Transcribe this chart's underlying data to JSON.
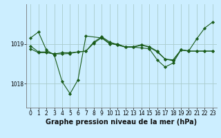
{
  "background_color": "#cceeff",
  "grid_color": "#aacccc",
  "line_color": "#1a5c1a",
  "marker_color": "#1a5c1a",
  "xlabel": "Graphe pression niveau de la mer (hPa)",
  "yticks": [
    1018,
    1019
  ],
  "ylim": [
    1017.4,
    1020.0
  ],
  "xlim": [
    -0.5,
    23.5
  ],
  "xticks": [
    0,
    1,
    2,
    3,
    4,
    5,
    6,
    7,
    8,
    9,
    10,
    11,
    12,
    13,
    14,
    15,
    16,
    17,
    18,
    19,
    20,
    21,
    22,
    23
  ],
  "series1_x": [
    0,
    1,
    2,
    3,
    3,
    4,
    5,
    6,
    7,
    9,
    10,
    11,
    12,
    13,
    14,
    15,
    16,
    17,
    18,
    19,
    20,
    21,
    22,
    23
  ],
  "series1_y": [
    1019.15,
    1019.3,
    1018.85,
    1018.72,
    1018.72,
    1018.05,
    1017.75,
    1018.1,
    1019.2,
    1019.15,
    1019.0,
    1019.0,
    1018.92,
    1018.92,
    1018.9,
    1018.88,
    1018.6,
    1018.42,
    1018.52,
    1018.85,
    1018.82,
    1018.82,
    1018.82,
    1018.82
  ],
  "series2_x": [
    0,
    1,
    2,
    3,
    4,
    5,
    6,
    7,
    8,
    9,
    10,
    11,
    12,
    13,
    14,
    15,
    16,
    17,
    18,
    19,
    20,
    21,
    22,
    23
  ],
  "series2_y": [
    1018.88,
    1018.78,
    1018.78,
    1018.75,
    1018.75,
    1018.76,
    1018.8,
    1018.82,
    1019.05,
    1019.18,
    1019.05,
    1018.98,
    1018.93,
    1018.93,
    1018.98,
    1018.93,
    1018.82,
    1018.62,
    1018.58,
    1018.85,
    1018.83,
    1019.13,
    1019.4,
    1019.55
  ],
  "series3_x": [
    0,
    1,
    2,
    3,
    4,
    5,
    6,
    7,
    8,
    9,
    10,
    11,
    12,
    13,
    14,
    15,
    16,
    17,
    18,
    19,
    20,
    21,
    22,
    23
  ],
  "series3_y": [
    1018.95,
    1018.8,
    1018.8,
    1018.75,
    1018.78,
    1018.78,
    1018.8,
    1018.82,
    1019.02,
    1019.16,
    1019.02,
    1018.97,
    1018.92,
    1018.92,
    1018.97,
    1018.92,
    1018.8,
    1018.62,
    1018.6,
    1018.85,
    1018.82,
    1018.82,
    1018.82,
    1018.82
  ],
  "title_fontsize": 7,
  "tick_fontsize": 5.5
}
